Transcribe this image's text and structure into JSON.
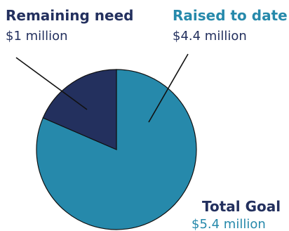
{
  "chart_data": {
    "type": "pie",
    "slices": [
      {
        "name": "Raised to date",
        "value_text": "$4.4 million",
        "value": 4.4,
        "color": "#2689ab"
      },
      {
        "name": "Remaining need",
        "value_text": "$1 million",
        "value": 1.0,
        "color": "#23305e"
      }
    ],
    "total": {
      "name": "Total Goal",
      "value_text": "$5.4 million",
      "value": 5.4
    },
    "colors": {
      "raised": "#2689ab",
      "remaining": "#23305e",
      "remaining_label": "#23305e",
      "raised_label": "#2689ab",
      "total_label": "#23305e",
      "value_text": "#23305e",
      "leader_line": "#111111",
      "slice_stroke": "#111111"
    }
  }
}
